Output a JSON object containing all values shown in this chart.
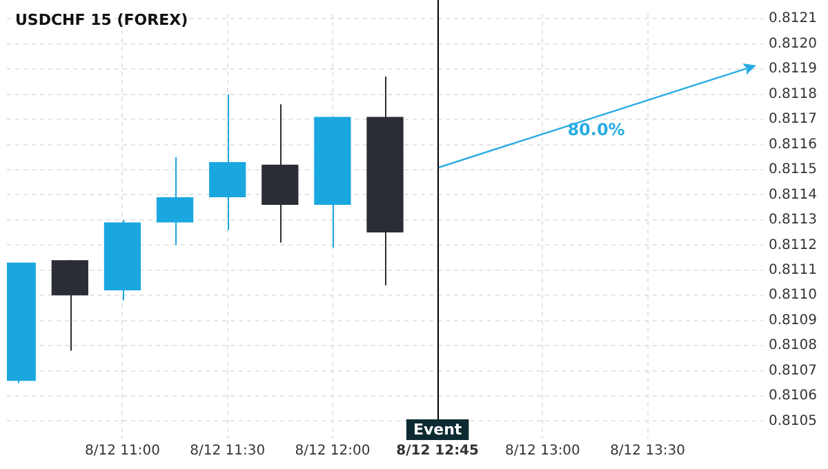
{
  "chart_data": {
    "type": "candlestick",
    "title": "USDCHF 15 (FOREX)",
    "categories": [
      null,
      null,
      "8/12 11:00",
      null,
      "8/12 11:30",
      null,
      "8/12 12:00",
      null,
      "8/12 12:45",
      null,
      "8/12 13:00",
      null,
      "8/12 13:30",
      null,
      null
    ],
    "ohlc": [
      [
        0.81066,
        0.81113,
        0.81065,
        0.81113
      ],
      [
        0.81114,
        0.81114,
        0.81078,
        0.811
      ],
      [
        0.81102,
        0.8113,
        0.81098,
        0.81129
      ],
      [
        0.81129,
        0.81155,
        0.8112,
        0.81139
      ],
      [
        0.81139,
        0.8118,
        0.81126,
        0.81153
      ],
      [
        0.81152,
        0.81176,
        0.81121,
        0.81136
      ],
      [
        0.81136,
        0.81171,
        0.81119,
        0.81171
      ],
      [
        0.81171,
        0.81187,
        0.81104,
        0.81125
      ],
      null,
      null,
      null,
      null,
      null,
      null,
      null
    ],
    "colors": [
      "#1aa7df",
      "#2b2d36",
      "#1aa7df",
      "#1aa7df",
      "#1aa7df",
      "#2b2d36",
      "#1aa7df",
      "#2b2d36",
      null,
      null,
      null,
      null,
      null,
      null,
      null
    ],
    "annotations": [
      "80.0%"
    ],
    "ref_lines": [
      {
        "axis": "x",
        "value": "8/12 12:45",
        "label": "Event",
        "color": "#000000"
      }
    ],
    "ylim": [
      0.81043,
      0.81212
    ],
    "yticks": [
      0.8105,
      0.8106,
      0.8107,
      0.8108,
      0.8109,
      {
        "value": 0.811,
        "label": "0.8110"
      },
      0.8111,
      0.8112,
      0.8113,
      0.8114,
      0.8115,
      0.8116,
      0.8117,
      0.8118,
      0.8119,
      {
        "value": 0.812,
        "label": "0.8120"
      },
      0.8121
    ],
    "grid": true
  }
}
